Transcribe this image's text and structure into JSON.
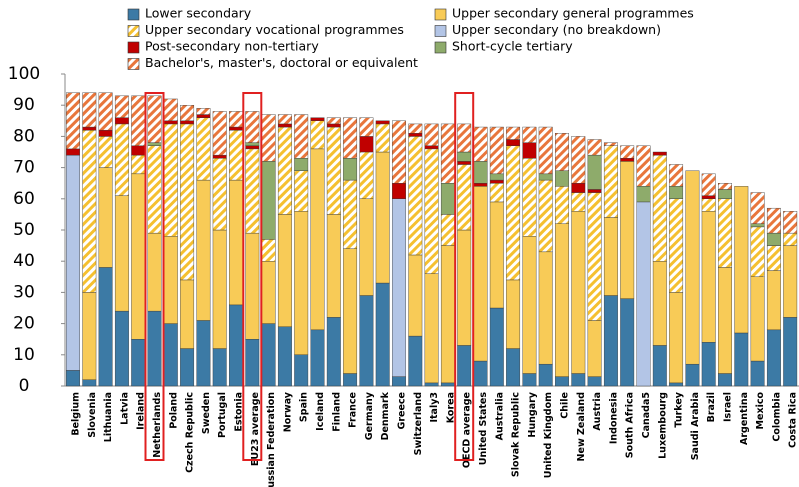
{
  "chart_data": {
    "type": "stacked_bar",
    "categories": [
      "Belgium",
      "Slovenia",
      "Lithuania",
      "Latvia",
      "Ireland",
      "Netherlands",
      "Poland",
      "Czech Republic",
      "Sweden",
      "Portugal",
      "Estonia",
      "EU23 average",
      "Russian Federation",
      "Norway",
      "Spain",
      "Iceland",
      "Finland",
      "France",
      "Germany",
      "Denmark",
      "Greece",
      "Switzerland",
      "Italy3",
      "Korea",
      "OECD average",
      "United States",
      "Australia",
      "Slovak Republic",
      "Hungary",
      "United Kingdom",
      "Chile",
      "New Zealand",
      "Austria",
      "Indonesia",
      "South Africa",
      "Canada5",
      "Luxembourg",
      "Turkey",
      "Saudi Arabia",
      "Brazil",
      "Israel",
      "Argentina",
      "Mexico",
      "Colombia",
      "Costa Rica"
    ],
    "series": [
      {
        "name": "Lower secondary",
        "color": "#3c7aa5",
        "pattern": "solid",
        "values": [
          5,
          2,
          38,
          24,
          15,
          24,
          20,
          12,
          21,
          12,
          26,
          15,
          20,
          19,
          10,
          18,
          22,
          4,
          29,
          33,
          3,
          16,
          1,
          1,
          13,
          8,
          25,
          12,
          4,
          7,
          3,
          4,
          3,
          29,
          28,
          0,
          13,
          1,
          7,
          14,
          4,
          17,
          8,
          18,
          22
        ]
      },
      {
        "name": "Upper secondary general programmes",
        "color": "#f8cb57",
        "pattern": "solid",
        "values": [
          0,
          28,
          32,
          37,
          53,
          25,
          28,
          22,
          45,
          38,
          40,
          34,
          20,
          36,
          46,
          58,
          33,
          40,
          31,
          42,
          0,
          26,
          35,
          44,
          37,
          56,
          34,
          22,
          44,
          36,
          49,
          52,
          18,
          25,
          44,
          0,
          27,
          29,
          62,
          42,
          34,
          47,
          27,
          19,
          23
        ]
      },
      {
        "name": "Upper secondary vocational programmes",
        "color": "#f5c030",
        "pattern": "hatched",
        "values": [
          0,
          52,
          10,
          23,
          6,
          28,
          36,
          50,
          20,
          23,
          16,
          27,
          7,
          28,
          13,
          9,
          28,
          22,
          15,
          9,
          0,
          38,
          40,
          10,
          21,
          0,
          6,
          43,
          25,
          23,
          12,
          6,
          41,
          23,
          0,
          0,
          34,
          30,
          0,
          4,
          22,
          0,
          16,
          8,
          4
        ]
      },
      {
        "name": "Upper secondary (no breakdown)",
        "color": "#b3c5e6",
        "pattern": "solid",
        "values": [
          69,
          0,
          0,
          0,
          0,
          0,
          0,
          0,
          0,
          0,
          0,
          0,
          0,
          0,
          0,
          0,
          0,
          0,
          0,
          0,
          57,
          0,
          0,
          0,
          0,
          0,
          0,
          0,
          0,
          0,
          0,
          0,
          0,
          0,
          0,
          59,
          0,
          0,
          0,
          0,
          0,
          0,
          0,
          0,
          0
        ]
      },
      {
        "name": "Post-secondary non-tertiary",
        "color": "#c00000",
        "pattern": "solid",
        "values": [
          2,
          1,
          2,
          2,
          3,
          0,
          1,
          1,
          1,
          1,
          1,
          1,
          0,
          1,
          0,
          1,
          1,
          0,
          5,
          1,
          5,
          1,
          1,
          0,
          1,
          1,
          1,
          2,
          5,
          0,
          0,
          3,
          1,
          0,
          1,
          0,
          1,
          0,
          0,
          1,
          0,
          0,
          0,
          0,
          0
        ]
      },
      {
        "name": "Short-cycle tertiary",
        "color": "#8eab6b",
        "pattern": "solid",
        "values": [
          0,
          0,
          0,
          0,
          0,
          1,
          0,
          0,
          0,
          0,
          0,
          1,
          25,
          0,
          4,
          0,
          0,
          7,
          0,
          0,
          0,
          0,
          0,
          10,
          3,
          7,
          2,
          0,
          0,
          2,
          5,
          0,
          11,
          0,
          0,
          5,
          0,
          4,
          0,
          0,
          3,
          0,
          1,
          4,
          0
        ]
      },
      {
        "name": "Bachelor's, master's, doctoral or equivalent",
        "color": "#e8763c",
        "pattern": "hatched",
        "values": [
          18,
          11,
          12,
          7,
          16,
          15,
          7,
          5,
          2,
          14,
          5,
          10,
          15,
          3,
          14,
          0,
          2,
          13,
          6,
          0,
          20,
          3,
          7,
          19,
          9,
          11,
          15,
          4,
          5,
          15,
          12,
          15,
          5,
          1,
          4,
          13,
          0,
          7,
          0,
          7,
          2,
          0,
          10,
          8,
          7
        ]
      }
    ],
    "ylim": [
      0,
      100
    ],
    "yticks": [
      0,
      10,
      20,
      30,
      40,
      50,
      60,
      70,
      80,
      90,
      100
    ],
    "highlighted": [
      5,
      11,
      24
    ],
    "highlight_color": "#e02020"
  }
}
